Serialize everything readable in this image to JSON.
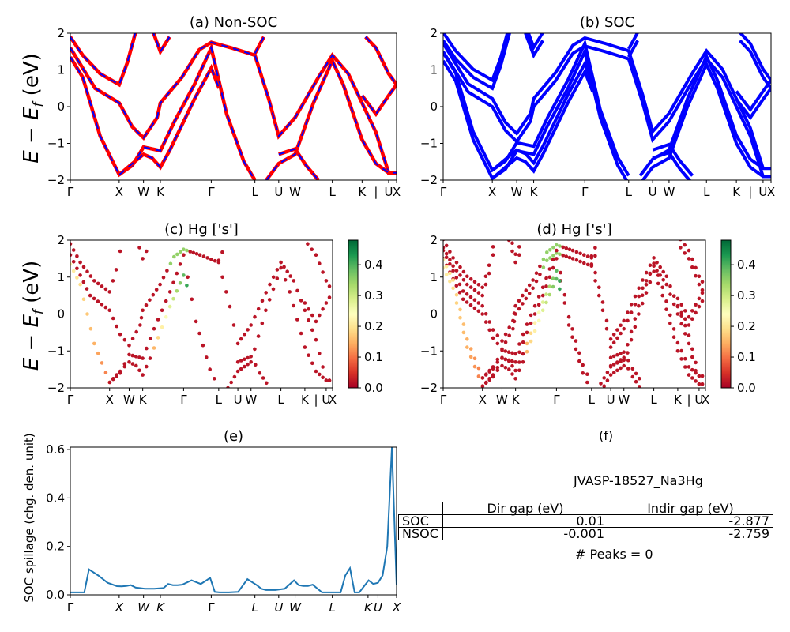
{
  "chart_data": [
    {
      "type": "line",
      "title": "(a) Non-SOC",
      "ylabel": "E − E_f (eV)",
      "ylim": [
        -2,
        2
      ],
      "yticks": [
        "−2",
        "−1",
        "0",
        "1",
        "2"
      ],
      "xticks": [
        "Γ",
        "X",
        "W",
        "K",
        "Γ",
        "L",
        "U",
        "W",
        "L",
        "K",
        "|",
        "U",
        "X"
      ],
      "series_colors": {
        "up": "#ff0000",
        "down": "#0000ff"
      }
    },
    {
      "type": "line",
      "title": "(b) SOC",
      "ylim": [
        -2,
        2
      ],
      "yticks": [
        "−2",
        "−1",
        "0",
        "1",
        "2"
      ],
      "xticks": [
        "Γ",
        "X",
        "W",
        "K",
        "Γ",
        "L",
        "U",
        "W",
        "L",
        "K",
        "|",
        "U",
        "X"
      ],
      "color": "#0000ff"
    },
    {
      "type": "scatter",
      "title": "(c)  Hg ['s']",
      "ylabel": "E − E_f (eV)",
      "ylim": [
        -2,
        2
      ],
      "yticks": [
        "−2",
        "−1",
        "0",
        "1",
        "2"
      ],
      "xticks": [
        "Γ",
        "X",
        "W",
        "K",
        "Γ",
        "L",
        "U",
        "W",
        "L",
        "K",
        "|",
        "U",
        "X"
      ],
      "colorbar": {
        "ticks": [
          "0.0",
          "0.1",
          "0.2",
          "0.3",
          "0.4"
        ],
        "range": [
          0,
          0.48
        ],
        "colormap": "RdYlGn"
      }
    },
    {
      "type": "scatter",
      "title": "(d) Hg ['s']",
      "ylim": [
        -2,
        2
      ],
      "yticks": [
        "−2",
        "−1",
        "0",
        "1",
        "2"
      ],
      "xticks": [
        "Γ",
        "X",
        "W",
        "K",
        "Γ",
        "L",
        "U",
        "W",
        "L",
        "K",
        "|",
        "U",
        "X"
      ],
      "colorbar": {
        "ticks": [
          "0.0",
          "0.1",
          "0.2",
          "0.3",
          "0.4"
        ],
        "range": [
          0,
          0.48
        ],
        "colormap": "RdYlGn"
      }
    },
    {
      "type": "line",
      "title": "(e)",
      "ylabel": "SOC spillage (chg. den. unit)",
      "ylim": [
        0,
        0.61
      ],
      "yticks": [
        "0.0",
        "0.2",
        "0.4",
        "0.6"
      ],
      "xticks": [
        "Γ",
        "X",
        "W",
        "K",
        "Γ",
        "L",
        "U",
        "W",
        "L",
        "K",
        "U",
        "X"
      ],
      "color": "#1f77b4",
      "x": [
        0,
        2,
        3,
        4,
        6,
        8,
        10,
        11,
        12,
        13,
        14,
        16,
        18,
        20,
        21,
        22,
        23,
        24,
        26,
        28,
        30,
        31,
        32,
        34,
        36,
        38,
        40,
        41,
        42,
        44,
        46,
        48,
        49,
        50,
        51,
        52,
        54,
        56,
        58,
        59,
        60,
        61,
        62,
        64,
        65,
        66,
        67,
        68,
        69,
        70
      ],
      "y": [
        0.01,
        0.01,
        0.01,
        0.105,
        0.08,
        0.05,
        0.036,
        0.035,
        0.037,
        0.04,
        0.03,
        0.025,
        0.025,
        0.028,
        0.045,
        0.04,
        0.04,
        0.042,
        0.06,
        0.045,
        0.07,
        0.012,
        0.01,
        0.01,
        0.012,
        0.065,
        0.04,
        0.025,
        0.02,
        0.02,
        0.025,
        0.06,
        0.04,
        0.037,
        0.037,
        0.042,
        0.01,
        0.01,
        0.01,
        0.08,
        0.11,
        0.01,
        0.01,
        0.06,
        0.045,
        0.05,
        0.08,
        0.2,
        0.61,
        0.04
      ]
    }
  ],
  "panel_f": {
    "title": "(f)",
    "name": "JVASP-18527_Na3Hg",
    "table": {
      "col1": "Dir gap (eV)",
      "col2": "Indir gap (eV)",
      "rows": [
        {
          "label": "SOC",
          "dir": "0.01",
          "indir": "-2.877"
        },
        {
          "label": "NSOC",
          "dir": "-0.001",
          "indir": "-2.759"
        }
      ]
    },
    "peaks": "# Peaks = 0"
  }
}
